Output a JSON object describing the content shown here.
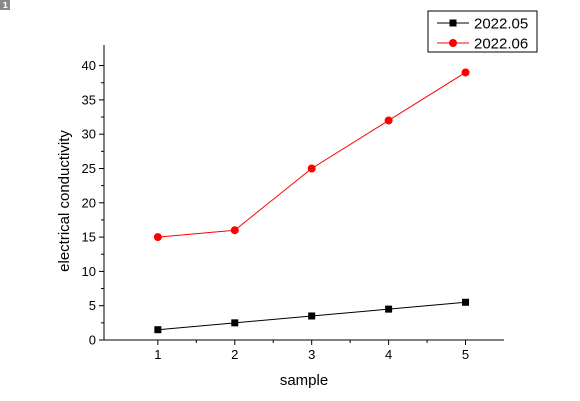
{
  "page_badge": "1",
  "chart_data": {
    "type": "line",
    "title": "",
    "xlabel": "sample",
    "ylabel": "electrical conductivity",
    "x": [
      1,
      2,
      3,
      4,
      5
    ],
    "xlim": [
      0.3,
      5.5
    ],
    "ylim": [
      0,
      43
    ],
    "xticks": [
      1,
      2,
      3,
      4,
      5
    ],
    "yticks": [
      0,
      5,
      10,
      15,
      20,
      25,
      30,
      35,
      40
    ],
    "grid": false,
    "legend_position": "top-right",
    "series": [
      {
        "name": "2022.05",
        "values": [
          1.5,
          2.5,
          3.5,
          4.5,
          5.5
        ],
        "color": "#000000",
        "marker": "square"
      },
      {
        "name": "2022.06",
        "values": [
          15,
          16,
          25,
          32,
          39
        ],
        "color": "#ff0000",
        "marker": "circle"
      }
    ]
  }
}
